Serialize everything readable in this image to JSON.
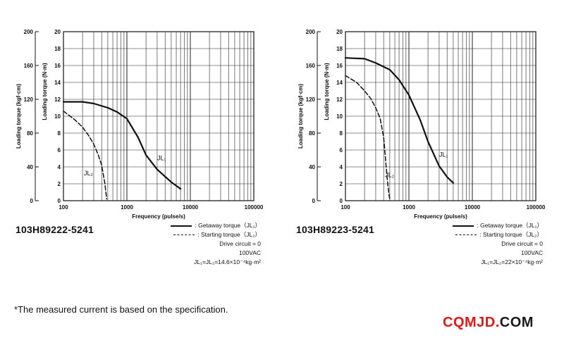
{
  "chart_data": [
    {
      "type": "line",
      "x_scale": "log",
      "xlim": [
        100,
        100000
      ],
      "xticks": [
        "100",
        "1000",
        "10000",
        "100000"
      ],
      "xlabel": "Frequency (pulse/s)",
      "ylabel_nm": "Loading torque (N·m)",
      "ylabel_kgf": "Loading torque (kgf·cm)",
      "ylim": [
        0,
        20
      ],
      "yticks_nm": [
        "0",
        "2",
        "4",
        "6",
        "8",
        "10",
        "12",
        "14",
        "16",
        "18",
        "20"
      ],
      "yticks_kgf": [
        "0",
        "40",
        "80",
        "120",
        "160",
        "200"
      ],
      "series": [
        {
          "name": "Getaway torque (JL1)",
          "style": "solid",
          "label": "JL₁",
          "x": [
            100,
            200,
            300,
            500,
            700,
            1000,
            1500,
            2000,
            3000,
            5000,
            7000
          ],
          "y": [
            11.7,
            11.7,
            11.5,
            11.0,
            10.5,
            9.7,
            7.5,
            5.4,
            3.7,
            2.2,
            1.4
          ]
        },
        {
          "name": "Starting torque (JL2)",
          "style": "dashed",
          "label": "JL₂",
          "x": [
            100,
            150,
            200,
            250,
            300,
            350,
            400,
            450,
            480
          ],
          "y": [
            10.6,
            9.6,
            8.7,
            7.7,
            6.7,
            5.5,
            4.2,
            2.0,
            0.2
          ]
        }
      ]
    },
    {
      "type": "line",
      "x_scale": "log",
      "xlim": [
        100,
        100000
      ],
      "xticks": [
        "100",
        "1000",
        "10000",
        "100000"
      ],
      "xlabel": "Frequency (pulse/s)",
      "ylabel_nm": "Loading torque (N·m)",
      "ylabel_kgf": "Loading torque (kgf·cm)",
      "ylim": [
        0,
        20
      ],
      "yticks_nm": [
        "0",
        "2",
        "4",
        "6",
        "8",
        "10",
        "12",
        "14",
        "16",
        "18",
        "20"
      ],
      "yticks_kgf": [
        "0",
        "40",
        "80",
        "120",
        "160",
        "200"
      ],
      "series": [
        {
          "name": "Getaway torque (JL1)",
          "style": "solid",
          "label": "JL₁",
          "x": [
            100,
            200,
            300,
            500,
            700,
            1000,
            1500,
            2000,
            3000,
            4000,
            5000
          ],
          "y": [
            16.9,
            16.8,
            16.3,
            15.5,
            14.3,
            12.5,
            9.6,
            7.0,
            4.1,
            2.8,
            2.1
          ]
        },
        {
          "name": "Starting torque (JL2)",
          "style": "dashed",
          "label": "JL₂",
          "x": [
            100,
            150,
            200,
            250,
            300,
            350,
            400,
            450,
            480,
            500
          ],
          "y": [
            14.8,
            14.0,
            13.0,
            12.1,
            11.0,
            9.8,
            7.5,
            3.0,
            1.0,
            0.1
          ]
        }
      ]
    }
  ],
  "left": {
    "model": "103H89222-5241",
    "legend": {
      "getaway": ": Getaway torque（JL₁）",
      "starting": ": Starting torque（JL₂）",
      "drive": "Drive circuit = 0",
      "voltage": "100VAC",
      "inertia": "JL₁=JL₂=14.6×10⁻⁴kg·m²"
    }
  },
  "right": {
    "model": "103H89223-5241",
    "legend": {
      "getaway": ": Getaway torque（JL₁）",
      "starting": ": Starting torque（JL₂）",
      "drive": "Drive circuit = 0",
      "voltage": "100VAC",
      "inertia": "JL₁=JL₂=22×10⁻⁴kg·m²"
    }
  },
  "footnote": "*The measured current is based on the specification.",
  "brand": {
    "main": "CQMJD",
    "dot": ".",
    "com": "COM"
  }
}
